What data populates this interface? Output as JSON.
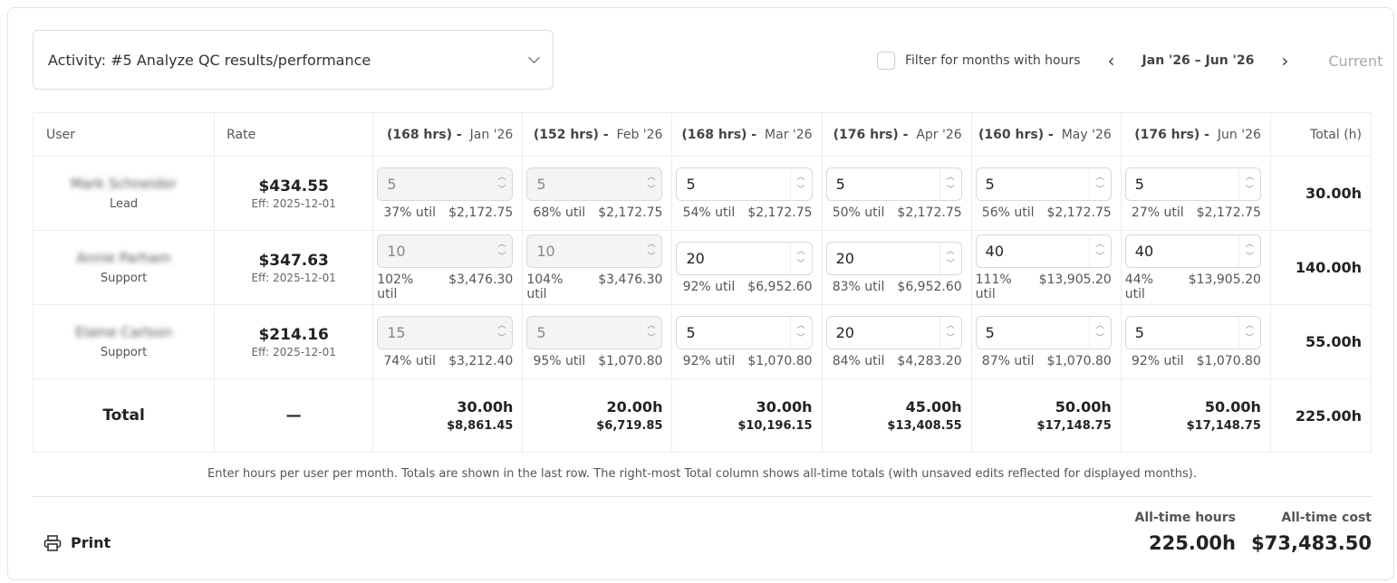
{
  "activity_select": {
    "value": "Activity: #5 Analyze QC results/performance"
  },
  "toolbar": {
    "filter_label": "Filter for months with hours",
    "filter_checked": false,
    "range": "Jan '26 – Jun '26",
    "current_label": "Current"
  },
  "table": {
    "headers": {
      "user": "User",
      "rate": "Rate",
      "total": "Total (h)"
    },
    "months": [
      {
        "hrs": "(168 hrs) -",
        "label": "Jan '26"
      },
      {
        "hrs": "(152 hrs) -",
        "label": "Feb '26"
      },
      {
        "hrs": "(168 hrs) -",
        "label": "Mar '26"
      },
      {
        "hrs": "(176 hrs) -",
        "label": "Apr '26"
      },
      {
        "hrs": "(160 hrs) -",
        "label": "May '26"
      },
      {
        "hrs": "(176 hrs) -",
        "label": "Jun '26"
      }
    ],
    "rows": [
      {
        "name": "Mark Schneider",
        "role": "Lead",
        "rate": "$434.55",
        "eff": "Eff: 2025-12-01",
        "total": "30.00h",
        "cells": [
          {
            "hours": "5",
            "util": "37% util",
            "cost": "$2,172.75",
            "disabled": true
          },
          {
            "hours": "5",
            "util": "68% util",
            "cost": "$2,172.75",
            "disabled": true
          },
          {
            "hours": "5",
            "util": "54% util",
            "cost": "$2,172.75"
          },
          {
            "hours": "5",
            "util": "50% util",
            "cost": "$2,172.75"
          },
          {
            "hours": "5",
            "util": "56% util",
            "cost": "$2,172.75"
          },
          {
            "hours": "5",
            "util": "27% util",
            "cost": "$2,172.75"
          }
        ]
      },
      {
        "name": "Annie Parham",
        "role": "Support",
        "rate": "$347.63",
        "eff": "Eff: 2025-12-01",
        "total": "140.00h",
        "cells": [
          {
            "hours": "10",
            "util": "102% util",
            "cost": "$3,476.30",
            "disabled": true
          },
          {
            "hours": "10",
            "util": "104% util",
            "cost": "$3,476.30",
            "disabled": true
          },
          {
            "hours": "20",
            "util": "92% util",
            "cost": "$6,952.60"
          },
          {
            "hours": "20",
            "util": "83% util",
            "cost": "$6,952.60"
          },
          {
            "hours": "40",
            "util": "111% util",
            "cost": "$13,905.20"
          },
          {
            "hours": "40",
            "util": "44% util",
            "cost": "$13,905.20"
          }
        ]
      },
      {
        "name": "Elaine Carlson",
        "role": "Support",
        "rate": "$214.16",
        "eff": "Eff: 2025-12-01",
        "total": "55.00h",
        "cells": [
          {
            "hours": "15",
            "util": "74% util",
            "cost": "$3,212.40",
            "disabled": true
          },
          {
            "hours": "5",
            "util": "95% util",
            "cost": "$1,070.80",
            "disabled": true
          },
          {
            "hours": "5",
            "util": "92% util",
            "cost": "$1,070.80"
          },
          {
            "hours": "20",
            "util": "84% util",
            "cost": "$4,283.20"
          },
          {
            "hours": "5",
            "util": "87% util",
            "cost": "$1,070.80"
          },
          {
            "hours": "5",
            "util": "92% util",
            "cost": "$1,070.80"
          }
        ]
      }
    ],
    "totals": {
      "label": "Total",
      "rate": "—",
      "grand": "225.00h",
      "months": [
        {
          "hours": "30.00h",
          "cost": "$8,861.45"
        },
        {
          "hours": "20.00h",
          "cost": "$6,719.85"
        },
        {
          "hours": "30.00h",
          "cost": "$10,196.15"
        },
        {
          "hours": "45.00h",
          "cost": "$13,408.55"
        },
        {
          "hours": "50.00h",
          "cost": "$17,148.75"
        },
        {
          "hours": "50.00h",
          "cost": "$17,148.75"
        }
      ]
    }
  },
  "note": "Enter hours per user per month. Totals are shown in the last row. The right-most Total column shows all-time totals (with unsaved edits reflected for displayed months).",
  "footer": {
    "print_label": "Print",
    "all_time_hours_label": "All-time hours",
    "all_time_hours": "225.00h",
    "all_time_cost_label": "All-time cost",
    "all_time_cost": "$73,483.50"
  }
}
